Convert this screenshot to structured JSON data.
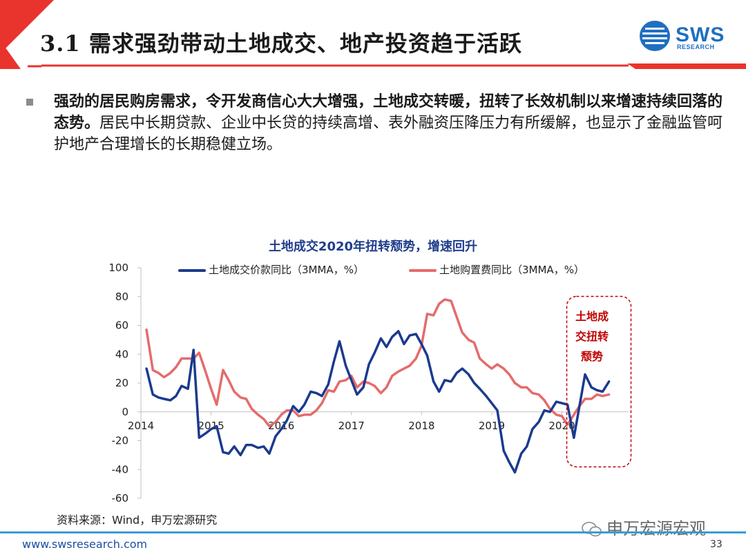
{
  "header": {
    "title": "3.1 需求强劲带动土地成交、地产投资趋于活跃",
    "logo_text": "SWS",
    "logo_sub": "RESEARCH"
  },
  "body": {
    "bold_text": "强劲的居民购房需求，令开发商信心大大增强，土地成交转暖，扭转了长效机制以来增速持续回落的态势。",
    "normal_text": "居民中长期贷款、企业中长贷的持续高增、表外融资压降压力有所缓解，也显示了金融监管呵护地产合理增长的长期稳健立场。"
  },
  "chart_data": {
    "type": "line",
    "title": "土地成交2020年扭转颓势，增速回升",
    "xlabel": "",
    "ylabel": "",
    "ylim": [
      -60,
      100
    ],
    "yticks": [
      -60,
      -40,
      -20,
      0,
      20,
      40,
      60,
      80,
      100
    ],
    "xlim": [
      2014,
      2020.95
    ],
    "xticks": [
      2014,
      2015,
      2016,
      2017,
      2018,
      2019,
      2020
    ],
    "xtick_labels": [
      "2014",
      "2015",
      "2016",
      "2017",
      "2018",
      "2019",
      "2020"
    ],
    "series": [
      {
        "name": "土地成交价款同比（3MMA，%）",
        "color": "#1b3a8f",
        "points": [
          [
            2014.08,
            30
          ],
          [
            2014.17,
            12
          ],
          [
            2014.25,
            10
          ],
          [
            2014.33,
            9
          ],
          [
            2014.42,
            8
          ],
          [
            2014.5,
            11
          ],
          [
            2014.58,
            18
          ],
          [
            2014.67,
            16
          ],
          [
            2014.75,
            43
          ],
          [
            2014.83,
            -18
          ],
          [
            2014.92,
            -15
          ],
          [
            2015.0,
            -12
          ],
          [
            2015.08,
            -10
          ],
          [
            2015.17,
            -28
          ],
          [
            2015.25,
            -29
          ],
          [
            2015.33,
            -24
          ],
          [
            2015.42,
            -30
          ],
          [
            2015.5,
            -23
          ],
          [
            2015.58,
            -23
          ],
          [
            2015.67,
            -25
          ],
          [
            2015.75,
            -24
          ],
          [
            2015.83,
            -29
          ],
          [
            2015.92,
            -17
          ],
          [
            2016.0,
            -12
          ],
          [
            2016.08,
            -6
          ],
          [
            2016.17,
            4
          ],
          [
            2016.25,
            0
          ],
          [
            2016.33,
            5
          ],
          [
            2016.42,
            14
          ],
          [
            2016.5,
            13
          ],
          [
            2016.58,
            11
          ],
          [
            2016.67,
            19
          ],
          [
            2016.75,
            35
          ],
          [
            2016.83,
            49
          ],
          [
            2016.92,
            32
          ],
          [
            2017.0,
            22
          ],
          [
            2017.08,
            12
          ],
          [
            2017.17,
            17
          ],
          [
            2017.25,
            33
          ],
          [
            2017.33,
            41
          ],
          [
            2017.42,
            51
          ],
          [
            2017.5,
            45
          ],
          [
            2017.58,
            52
          ],
          [
            2017.67,
            56
          ],
          [
            2017.75,
            47
          ],
          [
            2017.83,
            53
          ],
          [
            2017.92,
            54
          ],
          [
            2018.0,
            47
          ],
          [
            2018.08,
            39
          ],
          [
            2018.17,
            21
          ],
          [
            2018.25,
            14
          ],
          [
            2018.33,
            22
          ],
          [
            2018.42,
            21
          ],
          [
            2018.5,
            27
          ],
          [
            2018.58,
            30
          ],
          [
            2018.67,
            26
          ],
          [
            2018.75,
            20
          ],
          [
            2018.83,
            16
          ],
          [
            2018.92,
            11
          ],
          [
            2019.0,
            6
          ],
          [
            2019.08,
            1
          ],
          [
            2019.17,
            -27
          ],
          [
            2019.25,
            -35
          ],
          [
            2019.33,
            -42
          ],
          [
            2019.42,
            -29
          ],
          [
            2019.5,
            -24
          ],
          [
            2019.58,
            -12
          ],
          [
            2019.67,
            -7
          ],
          [
            2019.75,
            1
          ],
          [
            2019.83,
            0
          ],
          [
            2019.92,
            7
          ],
          [
            2020.0,
            6
          ],
          [
            2020.08,
            5
          ],
          [
            2020.17,
            -18
          ],
          [
            2020.25,
            4
          ],
          [
            2020.33,
            26
          ],
          [
            2020.42,
            17
          ],
          [
            2020.5,
            15
          ],
          [
            2020.58,
            14
          ],
          [
            2020.67,
            21
          ]
        ]
      },
      {
        "name": "土地购置费同比（3MMA，%）",
        "color": "#e56b6b",
        "points": [
          [
            2014.08,
            57
          ],
          [
            2014.17,
            29
          ],
          [
            2014.25,
            27
          ],
          [
            2014.33,
            24
          ],
          [
            2014.42,
            27
          ],
          [
            2014.5,
            31
          ],
          [
            2014.58,
            37
          ],
          [
            2014.67,
            37
          ],
          [
            2014.75,
            37
          ],
          [
            2014.83,
            41
          ],
          [
            2014.92,
            28
          ],
          [
            2015.0,
            16
          ],
          [
            2015.08,
            5
          ],
          [
            2015.17,
            29
          ],
          [
            2015.25,
            22
          ],
          [
            2015.33,
            14
          ],
          [
            2015.42,
            10
          ],
          [
            2015.5,
            9
          ],
          [
            2015.58,
            2
          ],
          [
            2015.67,
            -2
          ],
          [
            2015.75,
            -5
          ],
          [
            2015.83,
            -10
          ],
          [
            2015.92,
            -7
          ],
          [
            2016.0,
            -2
          ],
          [
            2016.08,
            1
          ],
          [
            2016.17,
            1
          ],
          [
            2016.25,
            -3
          ],
          [
            2016.33,
            -2
          ],
          [
            2016.42,
            -2
          ],
          [
            2016.5,
            1
          ],
          [
            2016.58,
            6
          ],
          [
            2016.67,
            15
          ],
          [
            2016.75,
            14
          ],
          [
            2016.83,
            21
          ],
          [
            2016.92,
            22
          ],
          [
            2017.0,
            25
          ],
          [
            2017.08,
            17
          ],
          [
            2017.17,
            21
          ],
          [
            2017.25,
            20
          ],
          [
            2017.33,
            18
          ],
          [
            2017.42,
            13
          ],
          [
            2017.5,
            17
          ],
          [
            2017.58,
            25
          ],
          [
            2017.67,
            28
          ],
          [
            2017.75,
            30
          ],
          [
            2017.83,
            32
          ],
          [
            2017.92,
            37
          ],
          [
            2018.0,
            46
          ],
          [
            2018.08,
            68
          ],
          [
            2018.17,
            67
          ],
          [
            2018.25,
            75
          ],
          [
            2018.33,
            78
          ],
          [
            2018.42,
            77
          ],
          [
            2018.5,
            66
          ],
          [
            2018.58,
            55
          ],
          [
            2018.67,
            50
          ],
          [
            2018.75,
            48
          ],
          [
            2018.83,
            37
          ],
          [
            2018.92,
            33
          ],
          [
            2019.0,
            30
          ],
          [
            2019.08,
            33
          ],
          [
            2019.17,
            30
          ],
          [
            2019.25,
            26
          ],
          [
            2019.33,
            20
          ],
          [
            2019.42,
            17
          ],
          [
            2019.5,
            17
          ],
          [
            2019.58,
            13
          ],
          [
            2019.67,
            12
          ],
          [
            2019.75,
            8
          ],
          [
            2019.83,
            2
          ],
          [
            2019.92,
            -2
          ],
          [
            2020.0,
            -3
          ],
          [
            2020.08,
            -9
          ],
          [
            2020.17,
            -2
          ],
          [
            2020.25,
            4
          ],
          [
            2020.33,
            9
          ],
          [
            2020.42,
            9
          ],
          [
            2020.5,
            12
          ],
          [
            2020.58,
            11
          ],
          [
            2020.67,
            12
          ]
        ]
      }
    ],
    "annotation": "土地成交扭转颓势"
  },
  "source": "资料来源：Wind，申万宏源研究",
  "watermark": "申万宏源宏观",
  "footer": {
    "url": "www.swsresearch.com",
    "page": "33"
  },
  "colors": {
    "brand_red": "#e8342c",
    "brand_blue": "#1f6fc0",
    "footer_blue": "#3a9ad9"
  }
}
